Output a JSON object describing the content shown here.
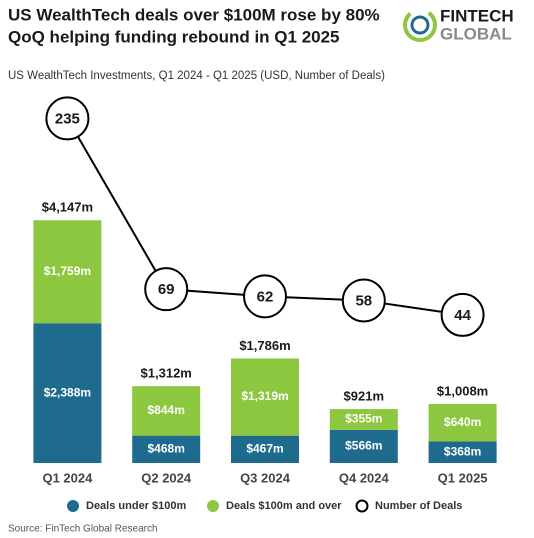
{
  "title_lines": [
    "US WealthTech deals over $100M rose by 80%",
    "QoQ helping funding rebound in Q1 2025"
  ],
  "logo": {
    "line1": "FINTECH",
    "line2": "GLOBAL"
  },
  "source": "Source: FinTech Global Research",
  "chart_data": {
    "type": "bar-line",
    "subtitle": "US WealthTech Investments, Q1 2024 - Q1 2025 (USD, Number of Deals)",
    "categories": [
      "Q1 2024",
      "Q2 2024",
      "Q3 2024",
      "Q4 2024",
      "Q1 2025"
    ],
    "stacked": true,
    "ylim": [
      0,
      6150
    ],
    "y2lim": [
      -100,
      250
    ],
    "series": [
      {
        "name": "Deals under $100m",
        "color": "#1f6b8e",
        "values": [
          2388,
          468,
          467,
          566,
          368
        ],
        "value_labels": [
          "$2,388m",
          "$468m",
          "$467m",
          "$566m",
          "$368m"
        ]
      },
      {
        "name": "Deals $100m and over",
        "color": "#8dc63f",
        "values": [
          1759,
          844,
          1319,
          355,
          640
        ],
        "value_labels": [
          "$1,759m",
          "$844m",
          "$1,319m",
          "$355m",
          "$640m"
        ]
      },
      {
        "name": "Number of Deals",
        "type": "line",
        "axis": "y2",
        "color": "#000000",
        "values": [
          235,
          69,
          62,
          58,
          44
        ]
      }
    ],
    "totals": {
      "values": [
        4147,
        1312,
        1786,
        921,
        1008
      ],
      "value_labels": [
        "$4,147m",
        "$1,312m",
        "$1,786m",
        "$921m",
        "$1,008m"
      ]
    }
  }
}
